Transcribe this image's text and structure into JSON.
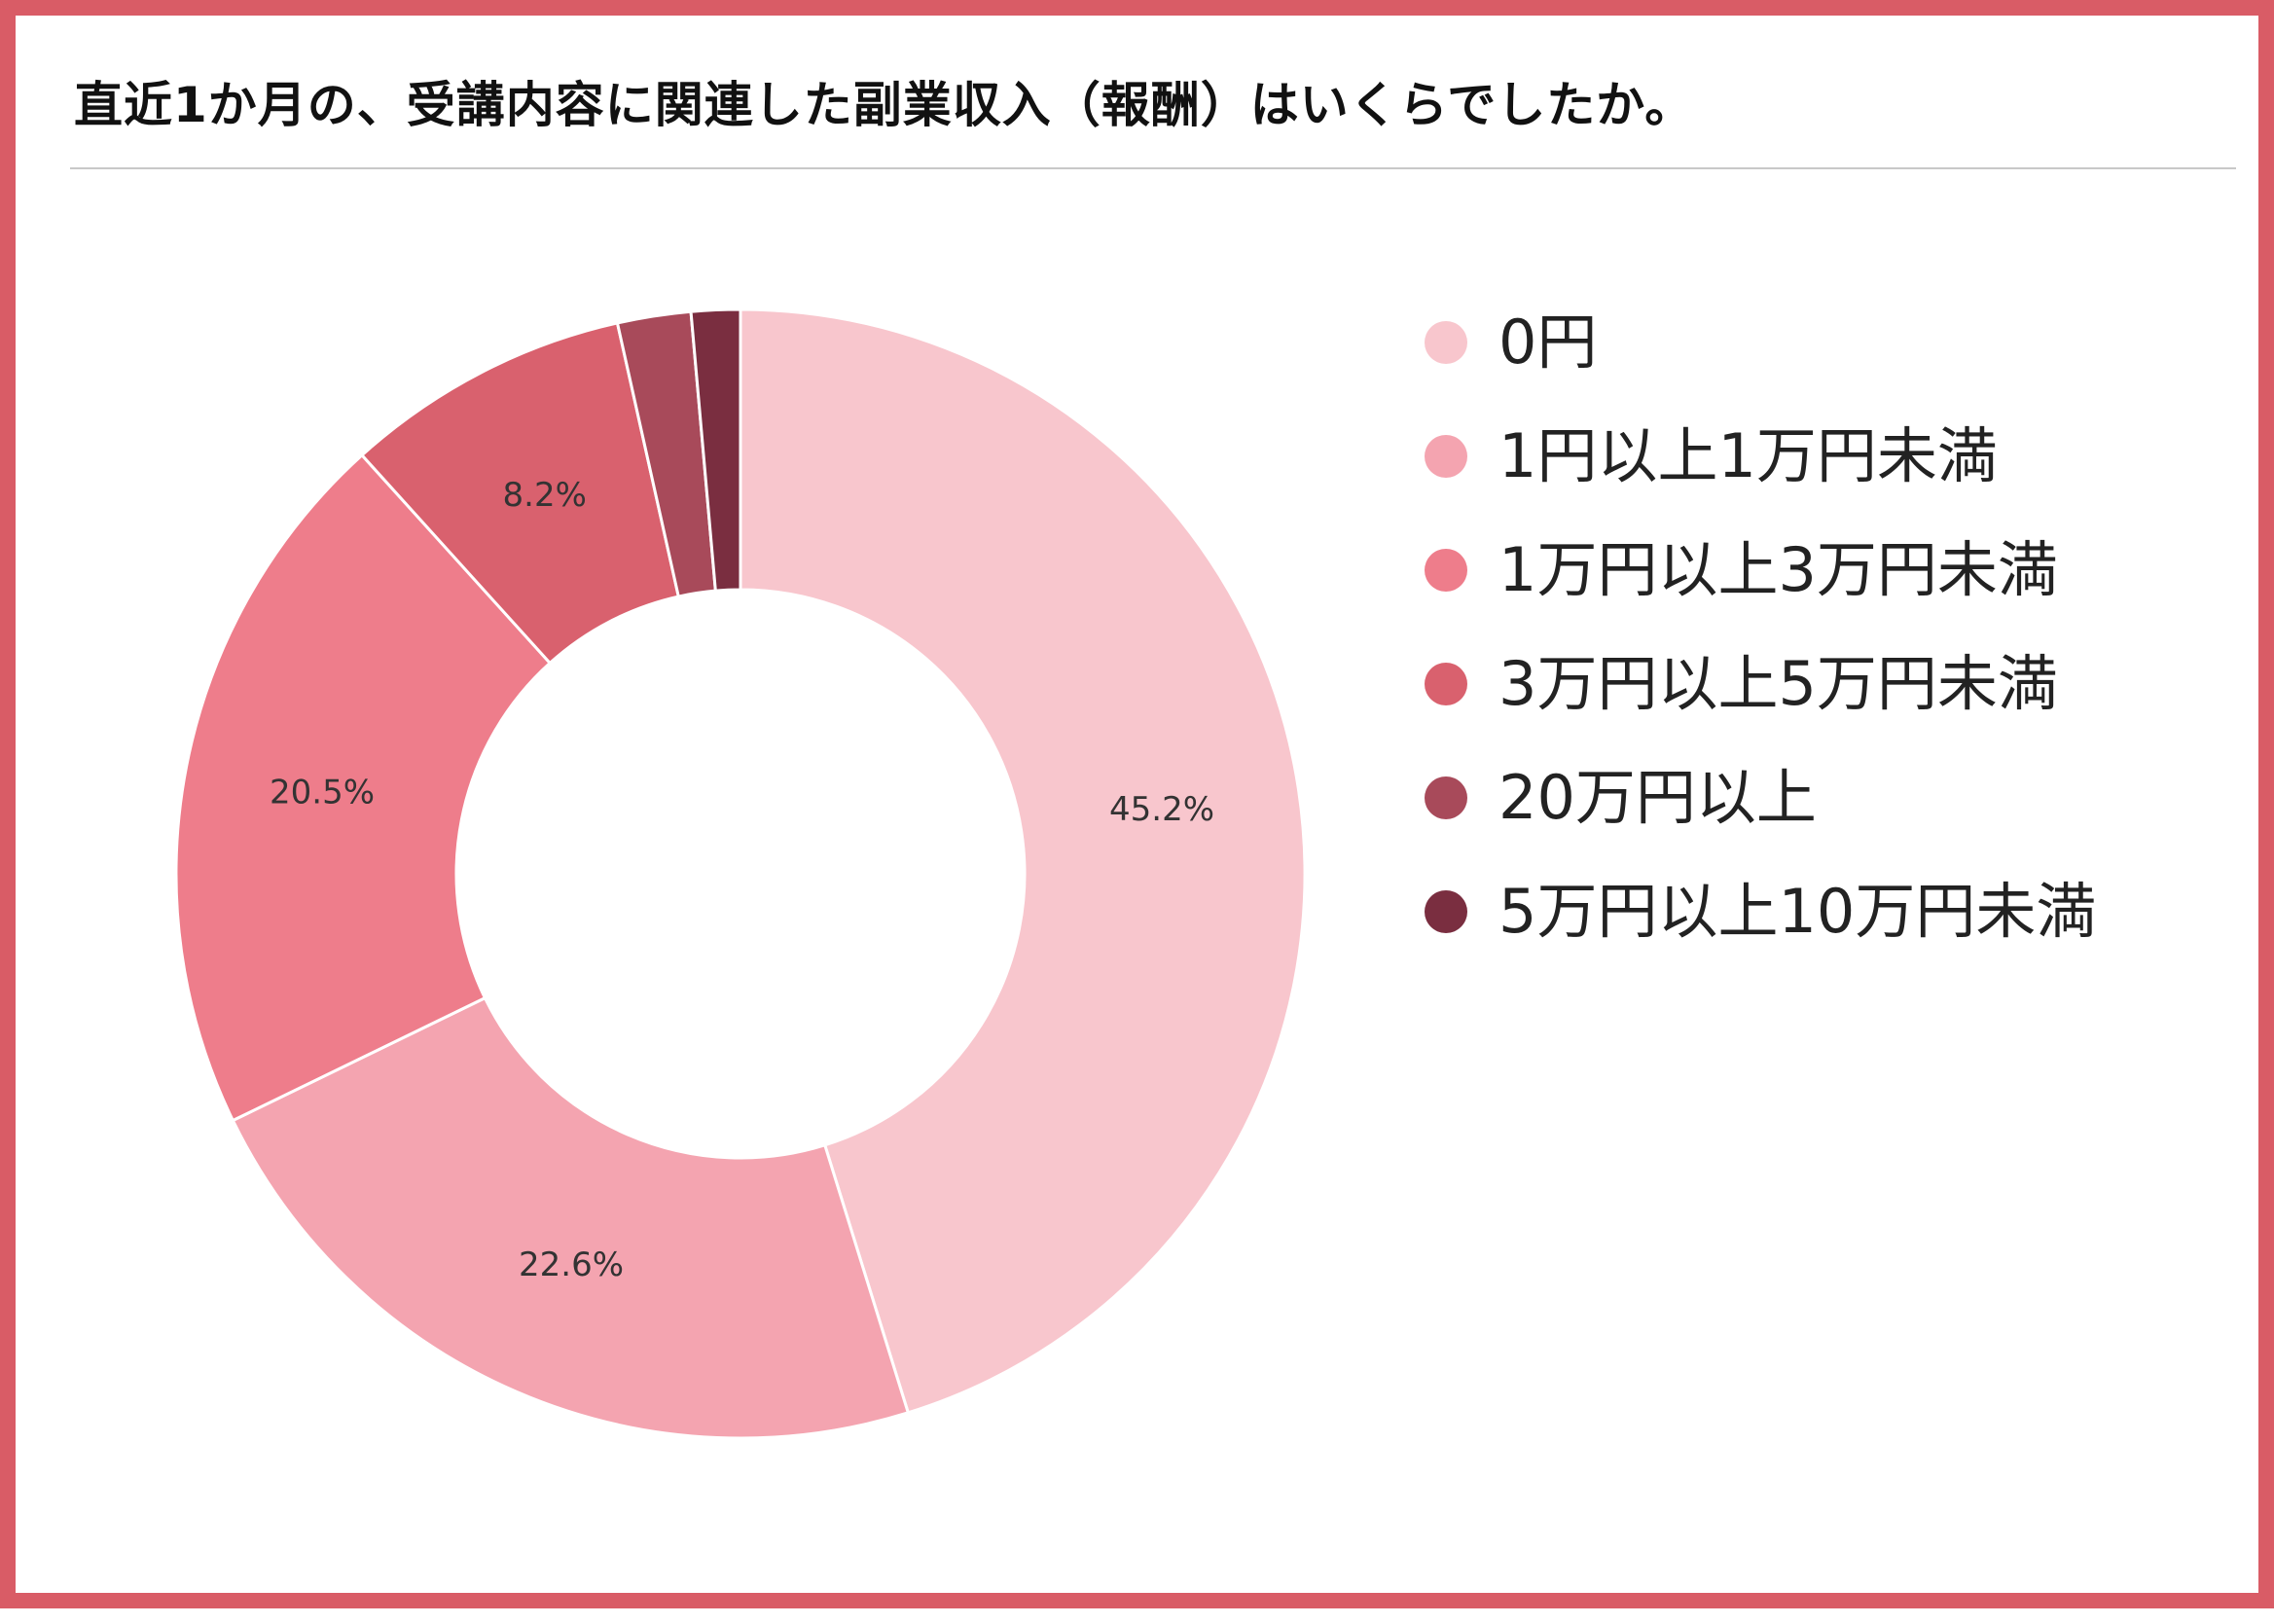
{
  "title": "直近1か月の、受講内容に関連した副業収入（報酬）はいくらでしたか。",
  "colors": {
    "frame": "#d95c66",
    "rule": "#c8c8c8"
  },
  "chart_data": {
    "type": "pie",
    "variant": "donut",
    "title": "直近1か月の、受講内容に関連した副業収入（報酬）はいくらでしたか。",
    "start_angle_deg": 0,
    "direction": "clockwise",
    "legend_position": "right",
    "slices": [
      {
        "label": "0円",
        "value": 45.2,
        "value_label": "45.2%",
        "color": "#f8c6cd"
      },
      {
        "label": "1円以上1万円未満",
        "value": 22.6,
        "value_label": "22.6%",
        "color": "#f4a4b0"
      },
      {
        "label": "1万円以上3万円未満",
        "value": 20.5,
        "value_label": "20.5%",
        "color": "#ee7d8b"
      },
      {
        "label": "3万円以上5万円未満",
        "value": 8.2,
        "value_label": "8.2%",
        "color": "#d9616e"
      },
      {
        "label": "20万円以上",
        "value": 2.1,
        "value_label": "",
        "color": "#a84a5a"
      },
      {
        "label": "5万円以上10万円未満",
        "value": 1.4,
        "value_label": "",
        "color": "#7a2e40"
      }
    ]
  },
  "legend": {
    "items": [
      {
        "label": "0円",
        "color": "#f8c6cd"
      },
      {
        "label": "1円以上1万円未満",
        "color": "#f4a4b0"
      },
      {
        "label": "1万円以上3万円未満",
        "color": "#ee7d8b"
      },
      {
        "label": "3万円以上5万円未満",
        "color": "#d9616e"
      },
      {
        "label": "20万円以上",
        "color": "#a84a5a"
      },
      {
        "label": "5万円以上10万円未満",
        "color": "#7a2e40"
      }
    ]
  }
}
